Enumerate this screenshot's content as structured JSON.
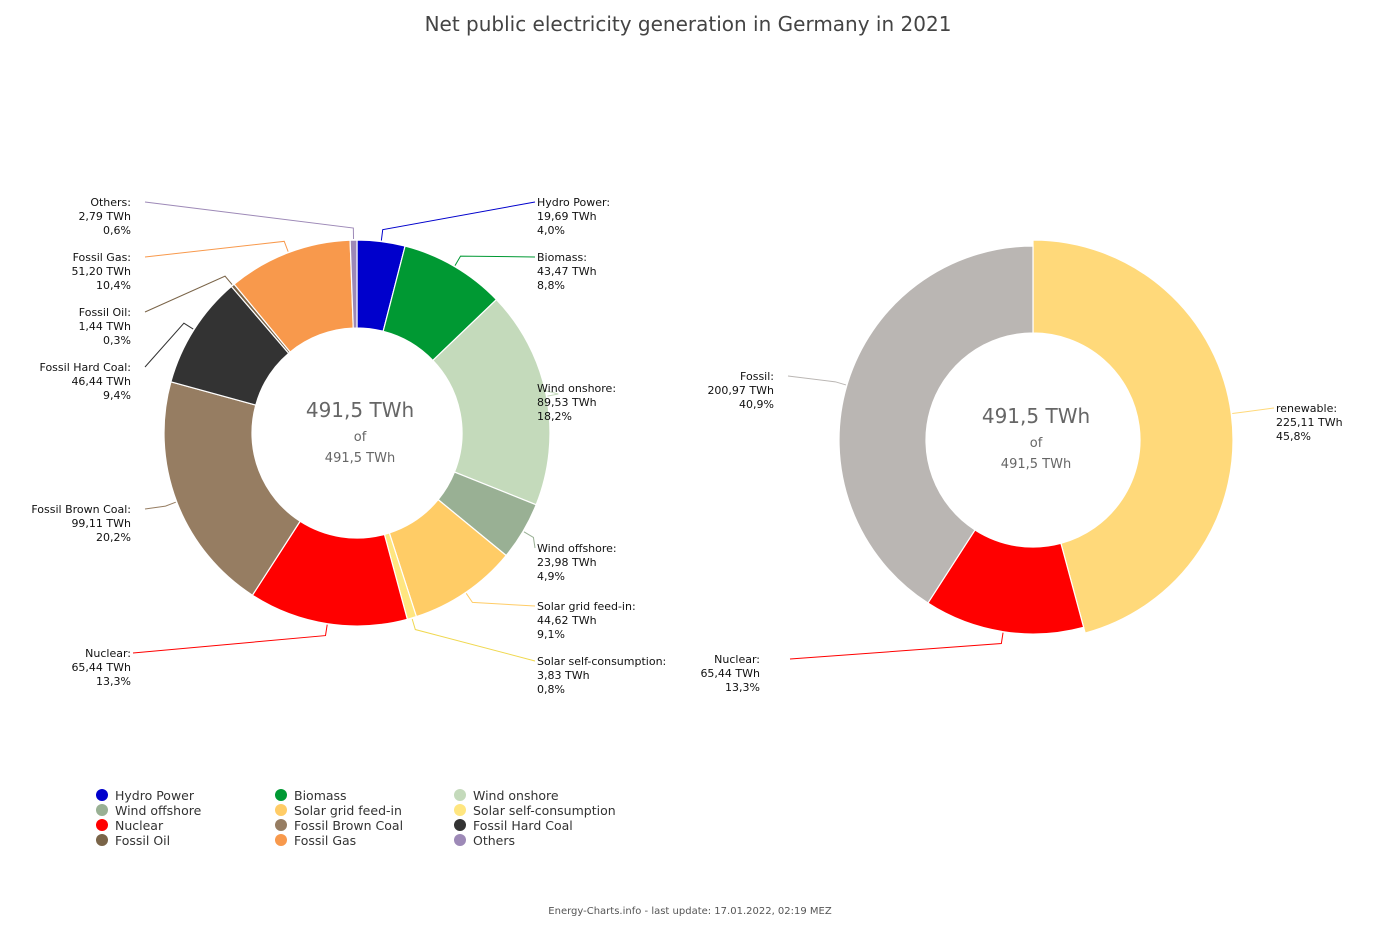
{
  "title": "Net public electricity generation in Germany in 2021",
  "footer": "Energy-Charts.info - last update: 17.01.2022, 02:19 MEZ",
  "center_labels": {
    "total": "491,5 TWh",
    "of": "of",
    "whole": "491,5 TWh"
  },
  "chart_data": [
    {
      "type": "pie",
      "variant": "donut",
      "title": "Net public electricity generation in Germany in 2021",
      "unit": "TWh",
      "total": 491.5,
      "series": [
        {
          "name": "Hydro Power",
          "value": 19.69,
          "value_label": "19,69 TWh",
          "percent_label": "4,0%",
          "color": "#0000cc"
        },
        {
          "name": "Biomass",
          "value": 43.47,
          "value_label": "43,47 TWh",
          "percent_label": "8,8%",
          "color": "#009933"
        },
        {
          "name": "Wind onshore",
          "value": 89.53,
          "value_label": "89,53 TWh",
          "percent_label": "18,2%",
          "color": "#c4dabb"
        },
        {
          "name": "Wind offshore",
          "value": 23.98,
          "value_label": "23,98 TWh",
          "percent_label": "4,9%",
          "color": "#99b094"
        },
        {
          "name": "Solar grid feed-in",
          "value": 44.62,
          "value_label": "44,62 TWh",
          "percent_label": "9,1%",
          "color": "#ffcc66"
        },
        {
          "name": "Solar self-consumption",
          "value": 3.83,
          "value_label": "3,83 TWh",
          "percent_label": "0,8%",
          "color": "#ffe680"
        },
        {
          "name": "Nuclear",
          "value": 65.44,
          "value_label": "65,44 TWh",
          "percent_label": "13,3%",
          "color": "#ff0000"
        },
        {
          "name": "Fossil Brown Coal",
          "value": 99.11,
          "value_label": "99,11 TWh",
          "percent_label": "20,2%",
          "color": "#967d62"
        },
        {
          "name": "Fossil Hard Coal",
          "value": 46.44,
          "value_label": "46,44 TWh",
          "percent_label": "9,4%",
          "color": "#333333"
        },
        {
          "name": "Fossil Oil",
          "value": 1.44,
          "value_label": "1,44 TWh",
          "percent_label": "0,3%",
          "color": "#7a6448"
        },
        {
          "name": "Fossil Gas",
          "value": 51.2,
          "value_label": "51,20 TWh",
          "percent_label": "10,4%",
          "color": "#f8994c"
        },
        {
          "name": "Others",
          "value": 2.79,
          "value_label": "2,79 TWh",
          "percent_label": "0,6%",
          "color": "#9d89b7"
        }
      ]
    },
    {
      "type": "pie",
      "variant": "donut",
      "unit": "TWh",
      "total": 491.5,
      "series": [
        {
          "name": "renewable",
          "value": 225.11,
          "value_label": "225,11 TWh",
          "percent_label": "45,8%",
          "color": "#ffd97a"
        },
        {
          "name": "Nuclear",
          "value": 65.44,
          "value_label": "65,44 TWh",
          "percent_label": "13,3%",
          "color": "#ff0000"
        },
        {
          "name": "Fossil",
          "value": 200.97,
          "value_label": "200,97 TWh",
          "percent_label": "40,9%",
          "color": "#bab6b3"
        }
      ]
    }
  ],
  "legend": [
    {
      "name": "Hydro Power",
      "color": "#0000cc"
    },
    {
      "name": "Biomass",
      "color": "#009933"
    },
    {
      "name": "Wind onshore",
      "color": "#c4dabb"
    },
    {
      "name": "Wind offshore",
      "color": "#99b094"
    },
    {
      "name": "Solar grid feed-in",
      "color": "#ffcc66"
    },
    {
      "name": "Solar self-consumption",
      "color": "#ffe680"
    },
    {
      "name": "Nuclear",
      "color": "#ff0000"
    },
    {
      "name": "Fossil Brown Coal",
      "color": "#967d62"
    },
    {
      "name": "Fossil Hard Coal",
      "color": "#333333"
    },
    {
      "name": "Fossil Oil",
      "color": "#7a6448"
    },
    {
      "name": "Fossil Gas",
      "color": "#f8994c"
    },
    {
      "name": "Others",
      "color": "#9d89b7"
    }
  ]
}
